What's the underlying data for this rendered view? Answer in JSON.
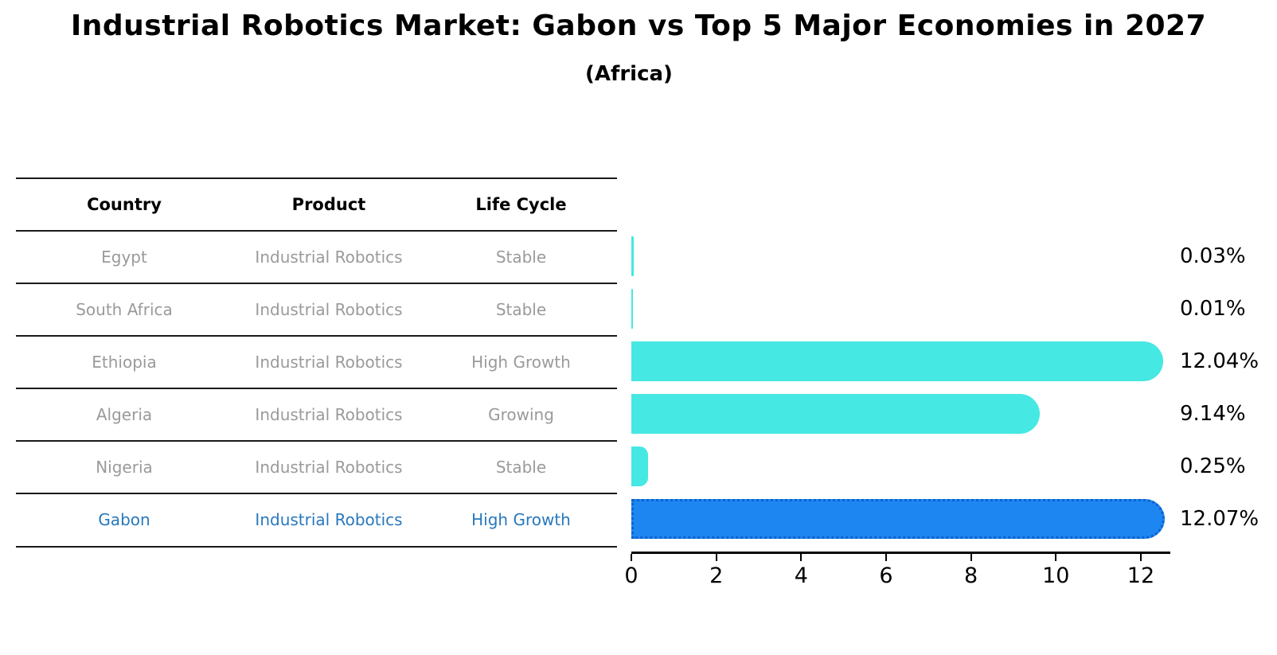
{
  "title": "Industrial Robotics Market: Gabon vs Top 5 Major Economies in 2027",
  "subtitle": "(Africa)",
  "chart_data": {
    "type": "bar",
    "orientation": "horizontal",
    "title": "Industrial Robotics Market: Gabon vs Top 5 Major Economies in 2027",
    "subtitle": "(Africa)",
    "table_headers": [
      "Country",
      "Product",
      "Life Cycle"
    ],
    "categories": [
      "Egypt",
      "South Africa",
      "Ethiopia",
      "Algeria",
      "Nigeria",
      "Gabon"
    ],
    "values": [
      0.03,
      0.01,
      12.04,
      9.14,
      0.25,
      12.07
    ],
    "value_labels": [
      "0.03%",
      "0.01%",
      "12.04%",
      "9.14%",
      "0.25%",
      "12.07%"
    ],
    "rows": [
      {
        "country": "Egypt",
        "product": "Industrial Robotics",
        "life_cycle": "Stable",
        "value": 0.03,
        "label": "0.03%",
        "highlighted": false
      },
      {
        "country": "South Africa",
        "product": "Industrial Robotics",
        "life_cycle": "Stable",
        "value": 0.01,
        "label": "0.01%",
        "highlighted": false
      },
      {
        "country": "Ethiopia",
        "product": "Industrial Robotics",
        "life_cycle": "High Growth",
        "value": 12.04,
        "label": "12.04%",
        "highlighted": false
      },
      {
        "country": "Algeria",
        "product": "Industrial Robotics",
        "life_cycle": "Growing",
        "value": 9.14,
        "label": "9.14%",
        "highlighted": false
      },
      {
        "country": "Nigeria",
        "product": "Industrial Robotics",
        "life_cycle": "Stable",
        "value": 0.25,
        "label": "0.25%",
        "highlighted": false
      },
      {
        "country": "Gabon",
        "product": "Industrial Robotics",
        "life_cycle": "High Growth",
        "value": 12.07,
        "label": "12.07%",
        "highlighted": true
      }
    ],
    "xticks": [
      "0",
      "2",
      "4",
      "6",
      "8",
      "10",
      "12"
    ],
    "xlim": [
      0,
      12.7
    ],
    "legend": "none",
    "grid": false,
    "colors": {
      "bar": "#45E8E2",
      "highlight_bar": "#1E86F0",
      "highlight_bar_border": "#0B62D0",
      "highlight_text": "#2878BE",
      "table_text": "#9A9A9A",
      "axis": "#000000"
    }
  }
}
